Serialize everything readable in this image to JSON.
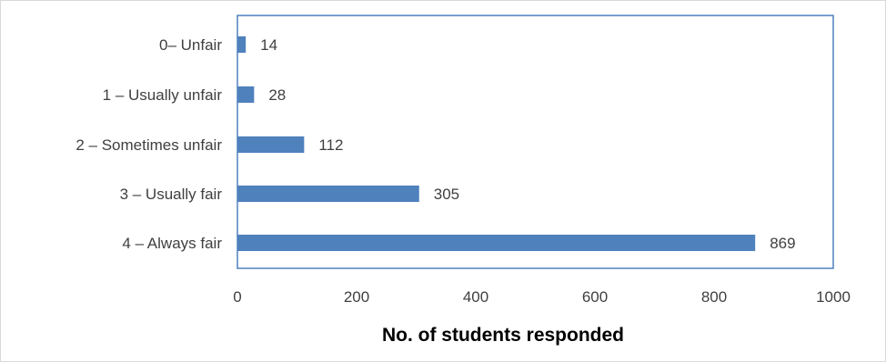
{
  "chart_data": {
    "type": "bar",
    "orientation": "horizontal",
    "categories": [
      "0– Unfair",
      "1 – Usually unfair",
      "2 – Sometimes unfair",
      "3 – Usually fair",
      "4 – Always fair"
    ],
    "values": [
      14,
      28,
      112,
      305,
      869
    ],
    "xlabel": "No. of students responded",
    "xlim": [
      0,
      1000
    ],
    "xticks": [
      0,
      200,
      400,
      600,
      800,
      1000
    ],
    "grid": false,
    "legend": "none",
    "bar_color": "#4f81bd",
    "border_color": "#4f81bd"
  }
}
